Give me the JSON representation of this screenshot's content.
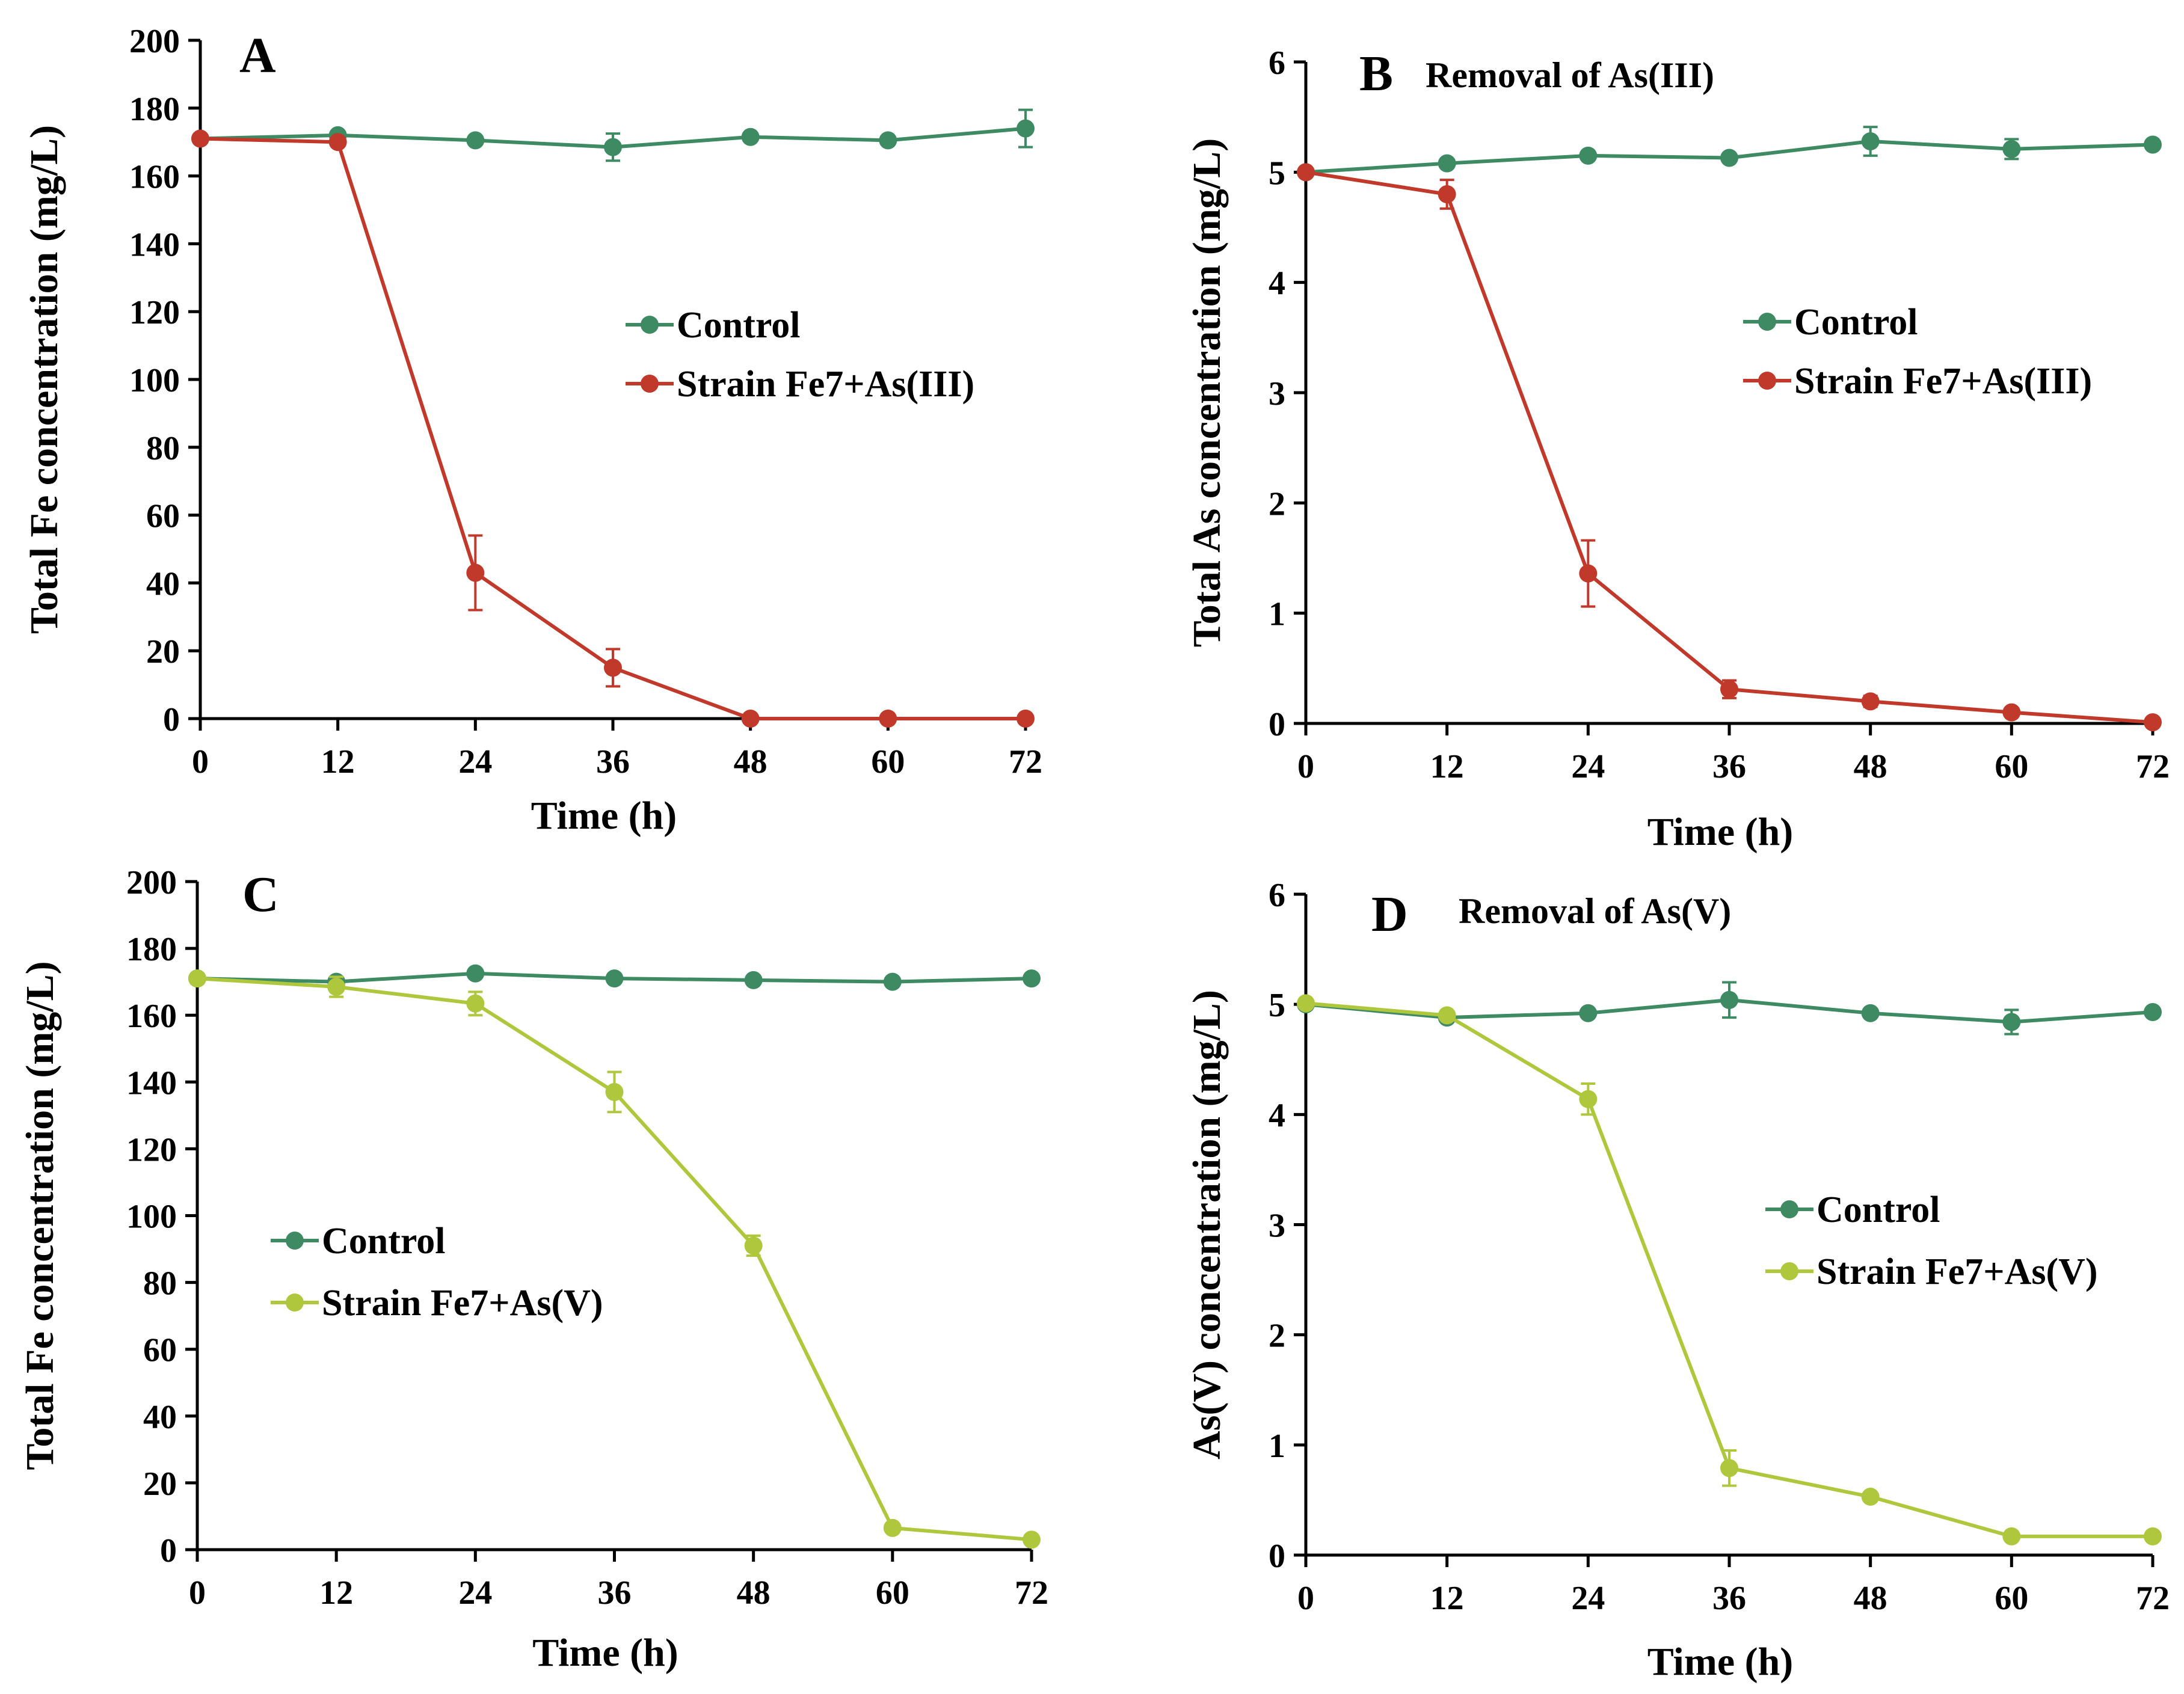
{
  "chart_data": [
    {
      "type": "line",
      "panel_label": "A",
      "title": "",
      "xlabel": "Time (h)",
      "ylabel": "Total Fe concentration (mg/L)",
      "x": [
        0,
        12,
        24,
        36,
        48,
        60,
        72
      ],
      "xticks": [
        "0",
        "12",
        "24",
        "36",
        "48",
        "60",
        "72"
      ],
      "xlim": [
        0,
        72
      ],
      "ylim": [
        0,
        200
      ],
      "yticks": [
        "0",
        "20",
        "40",
        "60",
        "80",
        "100",
        "120",
        "140",
        "160",
        "180",
        "200"
      ],
      "legend_position": "center-right",
      "series": [
        {
          "name": "Control",
          "color": "#3d8a63",
          "values": [
            171,
            172,
            170.5,
            168.5,
            171.5,
            170.5,
            174
          ],
          "errors": [
            1,
            1,
            1,
            4,
            1,
            1,
            5.5
          ]
        },
        {
          "name": "Strain Fe7+As(III)",
          "color": "#c0392b",
          "values": [
            171,
            170,
            43,
            15,
            0,
            0,
            0
          ],
          "errors": [
            1,
            1,
            11,
            5.5,
            0,
            0,
            0
          ]
        }
      ]
    },
    {
      "type": "line",
      "panel_label": "B",
      "title": "Removal of As(III)",
      "xlabel": "Time (h)",
      "ylabel": "Total As concentration (mg/L)",
      "x": [
        0,
        12,
        24,
        36,
        48,
        60,
        72
      ],
      "xticks": [
        "0",
        "12",
        "24",
        "36",
        "48",
        "60",
        "72"
      ],
      "xlim": [
        0,
        72
      ],
      "ylim": [
        0,
        6
      ],
      "yticks": [
        "0",
        "1",
        "2",
        "3",
        "4",
        "5",
        "6"
      ],
      "legend_position": "center-right",
      "series": [
        {
          "name": "Control",
          "color": "#3d8a63",
          "values": [
            5.0,
            5.08,
            5.15,
            5.13,
            5.28,
            5.21,
            5.25
          ],
          "errors": [
            0.03,
            0.03,
            0.03,
            0.03,
            0.13,
            0.09,
            0.03
          ]
        },
        {
          "name": "Strain Fe7+As(III)",
          "color": "#c0392b",
          "values": [
            5.0,
            4.8,
            1.36,
            0.31,
            0.2,
            0.1,
            0.01
          ],
          "errors": [
            0.03,
            0.13,
            0.3,
            0.08,
            0.05,
            0.03,
            0.01
          ]
        }
      ]
    },
    {
      "type": "line",
      "panel_label": "C",
      "title": "",
      "xlabel": "Time (h)",
      "ylabel": "Total Fe concentration (mg/L)",
      "x": [
        0,
        12,
        24,
        36,
        48,
        60,
        72
      ],
      "xticks": [
        "0",
        "12",
        "24",
        "36",
        "48",
        "60",
        "72"
      ],
      "xlim": [
        0,
        72
      ],
      "ylim": [
        0,
        200
      ],
      "yticks": [
        "0",
        "20",
        "40",
        "60",
        "80",
        "100",
        "120",
        "140",
        "160",
        "180",
        "200"
      ],
      "legend_position": "center-left",
      "series": [
        {
          "name": "Control",
          "color": "#3d8a63",
          "values": [
            171,
            170,
            172.5,
            171,
            170.5,
            170,
            171
          ],
          "errors": [
            1,
            1,
            1,
            1,
            1,
            1,
            1
          ]
        },
        {
          "name": "Strain Fe7+As(V)",
          "color": "#aec73d",
          "values": [
            171,
            168.5,
            163.5,
            137,
            91,
            6.5,
            3
          ],
          "errors": [
            1,
            3,
            3.5,
            6,
            3,
            1,
            1
          ]
        }
      ]
    },
    {
      "type": "line",
      "panel_label": "D",
      "title": "Removal of As(V)",
      "xlabel": "Time (h)",
      "ylabel": "As(V) concentration (mg/L)",
      "x": [
        0,
        12,
        24,
        36,
        48,
        60,
        72
      ],
      "xticks": [
        "0",
        "12",
        "24",
        "36",
        "48",
        "60",
        "72"
      ],
      "xlim": [
        0,
        72
      ],
      "ylim": [
        0,
        6
      ],
      "yticks": [
        "0",
        "1",
        "2",
        "3",
        "4",
        "5",
        "6"
      ],
      "legend_position": "center-right",
      "series": [
        {
          "name": "Control",
          "color": "#3d8a63",
          "values": [
            5.0,
            4.88,
            4.92,
            5.04,
            4.92,
            4.84,
            4.93
          ],
          "errors": [
            0.03,
            0.03,
            0.03,
            0.16,
            0.03,
            0.11,
            0.03
          ]
        },
        {
          "name": "Strain Fe7+As(V)",
          "color": "#aec73d",
          "values": [
            5.01,
            4.9,
            4.14,
            0.79,
            0.53,
            0.17,
            0.17
          ],
          "errors": [
            0.03,
            0.03,
            0.14,
            0.16,
            0.03,
            0.03,
            0.03
          ]
        }
      ]
    }
  ]
}
